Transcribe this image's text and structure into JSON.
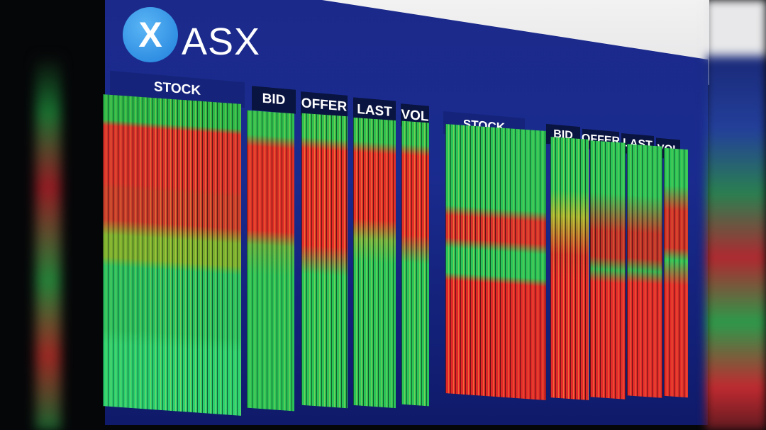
{
  "logo": {
    "mark": "X",
    "text": "ASX"
  },
  "left_panel": {
    "headers": [
      "STOCK",
      "BID",
      "OFFER",
      "LAST",
      "VOL"
    ]
  },
  "right_panel": {
    "headers": [
      "STOCK",
      "BID",
      "OFFER",
      "LAST",
      "VOL"
    ]
  },
  "colors": {
    "board": "#1a2b8f",
    "up": "#2ac45a",
    "down": "#e22a2a",
    "logo": "#2a8ae0"
  }
}
